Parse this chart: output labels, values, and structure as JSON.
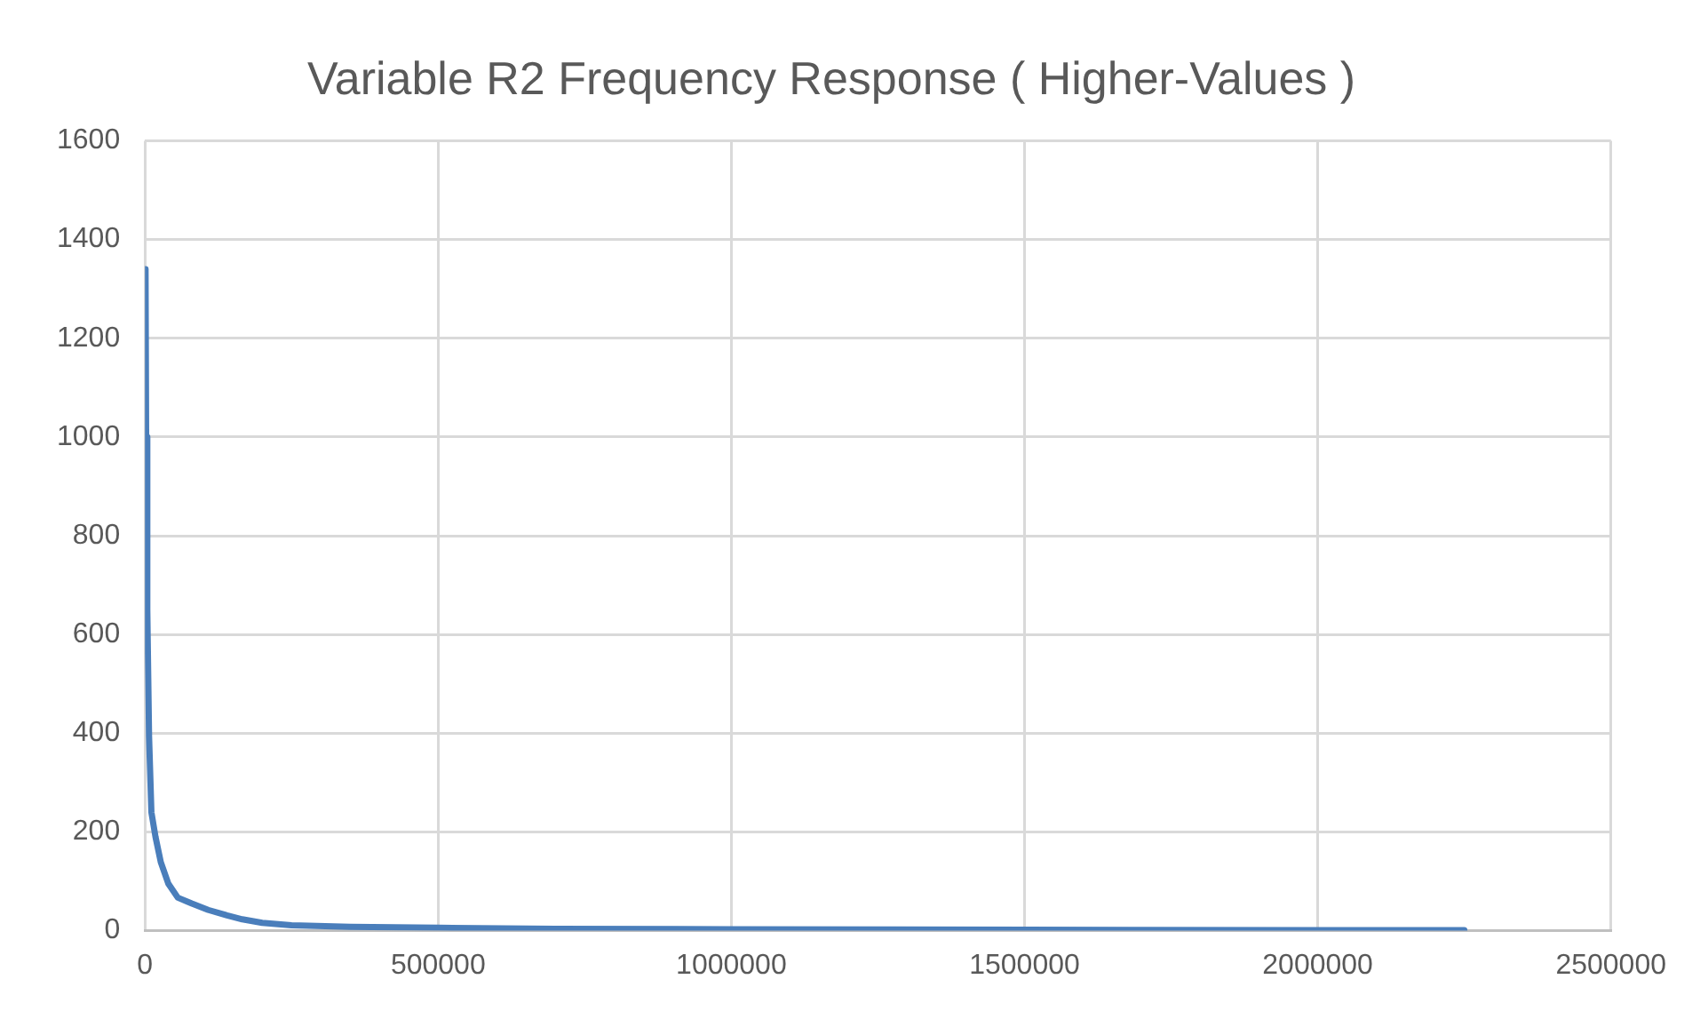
{
  "chart_data": {
    "type": "line",
    "title": "Variable R2 Frequency Response ( Higher-Values )",
    "series": [
      {
        "color": "#4a7ebb",
        "x": [
          1000,
          2000,
          4000,
          7000,
          11000,
          18000,
          27000,
          40000,
          56000,
          80000,
          108000,
          140000,
          166000,
          200000,
          250000,
          350000,
          500000,
          700000,
          1000000,
          1500000,
          2000000,
          2250000
        ],
        "values": [
          1340,
          1000,
          651,
          394,
          240,
          190,
          139,
          95,
          67,
          55,
          42,
          31,
          23,
          16,
          11,
          8,
          6,
          4,
          3,
          2,
          1,
          1
        ]
      }
    ],
    "xlim": [
      0,
      2500000
    ],
    "xticks": [
      0,
      500000,
      1000000,
      1500000,
      2000000,
      2500000
    ],
    "ylim": [
      0,
      1600
    ],
    "yticks": [
      0,
      200,
      400,
      600,
      800,
      1000,
      1200,
      1400,
      1600
    ],
    "grid": true,
    "legend": false,
    "marker": "none",
    "line_style": "solid"
  }
}
